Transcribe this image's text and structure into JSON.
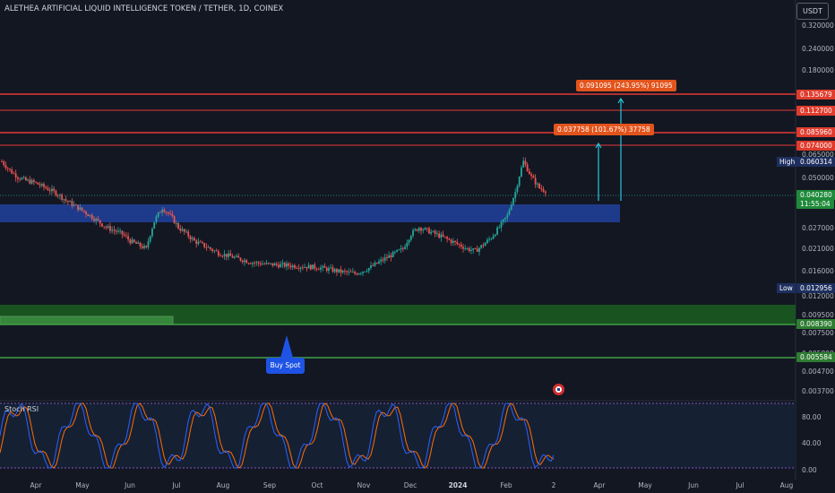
{
  "header": {
    "title": "ALETHEA ARTIFICIAL LIQUID INTELLIGENCE TOKEN / TETHER, 1D, COINEX",
    "currency_button": "USDT"
  },
  "price_axis": {
    "ticks": [
      "0.320000",
      "0.240000",
      "0.180000",
      "0.065000",
      "0.050000",
      "0.027000",
      "0.021000",
      "0.016000",
      "0.012000",
      "0.009500",
      "0.007500",
      "0.005800",
      "0.004700",
      "0.003700"
    ]
  },
  "price_badges": [
    {
      "label": "0.135679",
      "style": "red"
    },
    {
      "label": "0.112700",
      "style": "red"
    },
    {
      "label": "0.085960",
      "style": "red"
    },
    {
      "label": "0.074000",
      "style": "red"
    },
    {
      "label": "0.060314",
      "style": "navy"
    },
    {
      "label": "0.040280",
      "style": "price"
    },
    {
      "label": "11:55:04",
      "style": "price"
    },
    {
      "label": "0.012956",
      "style": "navy"
    },
    {
      "label": "0.008390",
      "style": "green"
    },
    {
      "label": "0.005584",
      "style": "green"
    }
  ],
  "hilo": {
    "high": "High",
    "low": "Low"
  },
  "measurements": {
    "upper": "0.091095 (243.95%) 91095",
    "lower": "0.037758 (101.67%) 37758"
  },
  "annotation": {
    "buy_spot": "Buy Spot"
  },
  "rsi": {
    "title": "Stoch RSI",
    "ticks": [
      "80.00",
      "40.00",
      "0.00"
    ]
  },
  "time_axis": {
    "ticks": [
      {
        "label": "Apr",
        "bold": false
      },
      {
        "label": "May",
        "bold": false
      },
      {
        "label": "Jun",
        "bold": false
      },
      {
        "label": "Jul",
        "bold": false
      },
      {
        "label": "Aug",
        "bold": false
      },
      {
        "label": "Sep",
        "bold": false
      },
      {
        "label": "Oct",
        "bold": false
      },
      {
        "label": "Nov",
        "bold": false
      },
      {
        "label": "Dec",
        "bold": false
      },
      {
        "label": "2024",
        "bold": true
      },
      {
        "label": "Feb",
        "bold": false
      },
      {
        "label": "2",
        "bold": false
      },
      {
        "label": "Apr",
        "bold": false
      },
      {
        "label": "May",
        "bold": false
      },
      {
        "label": "Jun",
        "bold": false
      },
      {
        "label": "Jul",
        "bold": false
      },
      {
        "label": "Aug",
        "bold": false
      }
    ]
  },
  "colors": {
    "background": "#131722",
    "up": "#26a69a",
    "down": "#ef5350",
    "zone_blue": "#1e3a8a",
    "zone_green": "#1b5e20",
    "resistance": "#e53935",
    "support": "#43a047",
    "rsi_k": "#2962ff",
    "rsi_d": "#ff6d00"
  },
  "chart_data": {
    "type": "candlestick",
    "series": [
      {
        "name": "price",
        "close": [
          0.058,
          0.052,
          0.048,
          0.046,
          0.045,
          0.043,
          0.041,
          0.039,
          0.036,
          0.034,
          0.032,
          0.03,
          0.028,
          0.026,
          0.025,
          0.024,
          0.022,
          0.021,
          0.02,
          0.028,
          0.033,
          0.03,
          0.026,
          0.024,
          0.022,
          0.021,
          0.02,
          0.019,
          0.0185,
          0.018,
          0.0175,
          0.017,
          0.0168,
          0.0166,
          0.0165,
          0.0164,
          0.0163,
          0.0162,
          0.0161,
          0.016,
          0.0158,
          0.0155,
          0.0152,
          0.015,
          0.0148,
          0.0153,
          0.016,
          0.017,
          0.018,
          0.019,
          0.02,
          0.024,
          0.026,
          0.025,
          0.024,
          0.023,
          0.022,
          0.021,
          0.02,
          0.0195,
          0.021,
          0.023,
          0.026,
          0.03,
          0.04,
          0.058,
          0.048,
          0.042,
          0.0403
        ]
      }
    ]
  }
}
